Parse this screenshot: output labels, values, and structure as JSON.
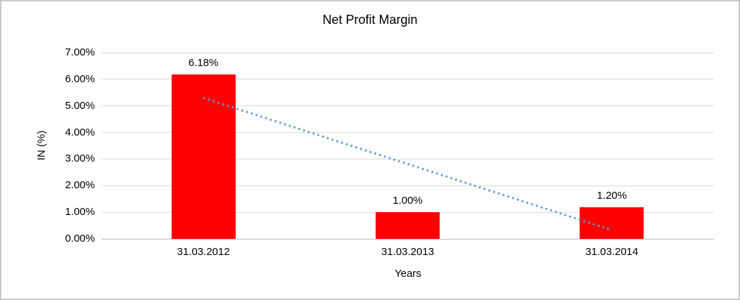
{
  "window": {
    "background": "#ffffff",
    "border_color": "#c9c9c9"
  },
  "chart_data": {
    "type": "bar",
    "title": "Net Profit Margin",
    "xlabel": "Years",
    "ylabel": "IN (%)",
    "categories": [
      "31.03.2012",
      "31.03.2013",
      "31.03.2014"
    ],
    "values": [
      6.18,
      1.0,
      1.2
    ],
    "value_labels": [
      "6.18%",
      "1.00%",
      "1.20%"
    ],
    "ylim": [
      0,
      7
    ],
    "ytick_step": 1,
    "ytick_labels": [
      "0.00%",
      "1.00%",
      "2.00%",
      "3.00%",
      "4.00%",
      "5.00%",
      "6.00%",
      "7.00%"
    ],
    "grid": true,
    "legend": "none",
    "bar_color": "#ff0000",
    "gridline_color": "#d9d9d9",
    "axis_line_color": "#bfbfbf",
    "text_color": "#000000",
    "trendline": {
      "type": "linear",
      "style": "dotted",
      "color": "#5b9bd5",
      "start_value": 5.3,
      "end_value": 0.33
    }
  }
}
